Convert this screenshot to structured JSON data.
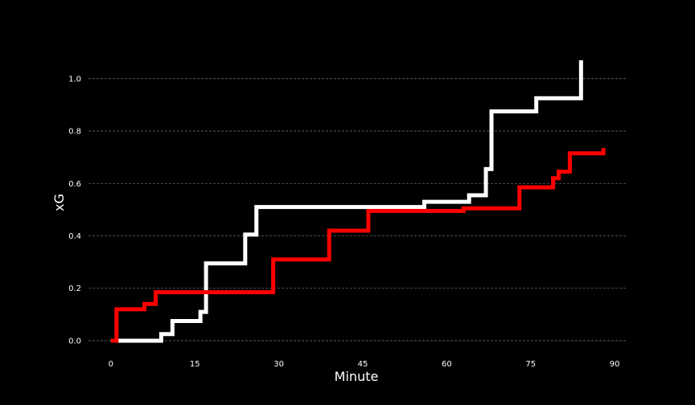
{
  "chart_data": {
    "type": "line",
    "step": "post",
    "xlabel": "Minute",
    "ylabel": "xG",
    "xlim": [
      -4,
      92
    ],
    "ylim": [
      -0.04,
      1.07
    ],
    "xticks": [
      0,
      15,
      30,
      45,
      60,
      75,
      90
    ],
    "yticks": [
      0.0,
      0.2,
      0.4,
      0.6,
      0.8,
      1.0
    ],
    "ytick_format": 1,
    "grid": "y",
    "background": "#000000",
    "grid_color": "#666666",
    "series": [
      {
        "color": "#ffffff",
        "x": [
          0,
          9,
          11,
          16,
          17,
          24,
          26,
          56,
          64,
          67,
          68,
          76,
          84,
          84
        ],
        "y": [
          0.0,
          0.025,
          0.075,
          0.11,
          0.295,
          0.405,
          0.51,
          0.53,
          0.555,
          0.655,
          0.875,
          0.925,
          0.925,
          1.07
        ]
      },
      {
        "color": "#ff0000",
        "x": [
          0,
          1,
          6,
          8,
          29,
          39,
          46,
          63,
          73,
          79,
          80,
          82,
          88,
          88
        ],
        "y": [
          0.0,
          0.12,
          0.14,
          0.185,
          0.31,
          0.42,
          0.495,
          0.505,
          0.585,
          0.62,
          0.645,
          0.715,
          0.715,
          0.735
        ]
      }
    ]
  }
}
